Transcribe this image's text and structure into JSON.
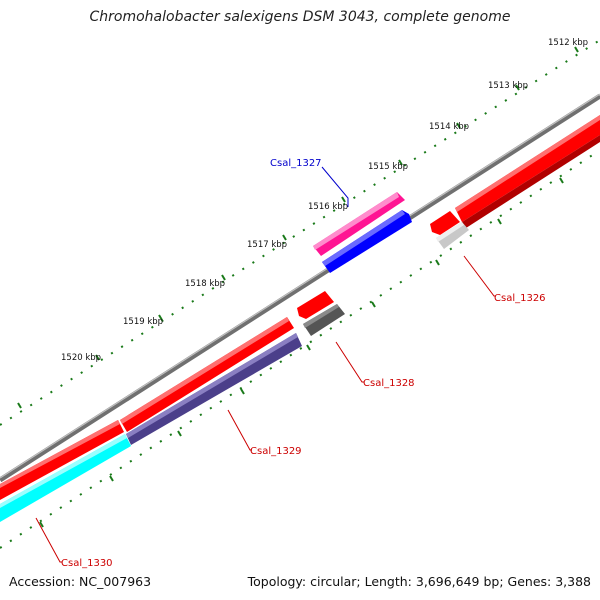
{
  "title": "Chromohalobacter salexigens DSM 3043, complete genome",
  "footer": {
    "accession": "Accession: NC_007963",
    "summary": "Topology: circular; Length: 3,696,649 bp; Genes: 3,388"
  },
  "ruler": {
    "labels": [
      "1512 kbp",
      "1513 kbp",
      "1514 kbp",
      "1515 kbp",
      "1516 kbp",
      "1517 kbp",
      "1518 kbp",
      "1519 kbp",
      "1520 kbp"
    ]
  },
  "genes": [
    {
      "id": "Csal_1326",
      "label": "Csal_1326",
      "label_color": "#cc0000"
    },
    {
      "id": "Csal_1327",
      "label": "Csal_1327",
      "label_color": "#0000cc"
    },
    {
      "id": "Csal_1328",
      "label": "Csal_1328",
      "label_color": "#cc0000"
    },
    {
      "id": "Csal_1329",
      "label": "Csal_1329",
      "label_color": "#cc0000"
    },
    {
      "id": "Csal_1330",
      "label": "Csal_1330",
      "label_color": "#cc0000"
    }
  ],
  "colors": {
    "backbone": "#808080",
    "cds_red": "#ff0000",
    "magenta": "#ff1493",
    "blue": "#0000ff",
    "dark_purple": "#4b3f8a",
    "cyan": "#00ffff",
    "dark_gray": "#555555",
    "light_gray": "#c8c8c8",
    "tick": "#1a7a1a"
  }
}
